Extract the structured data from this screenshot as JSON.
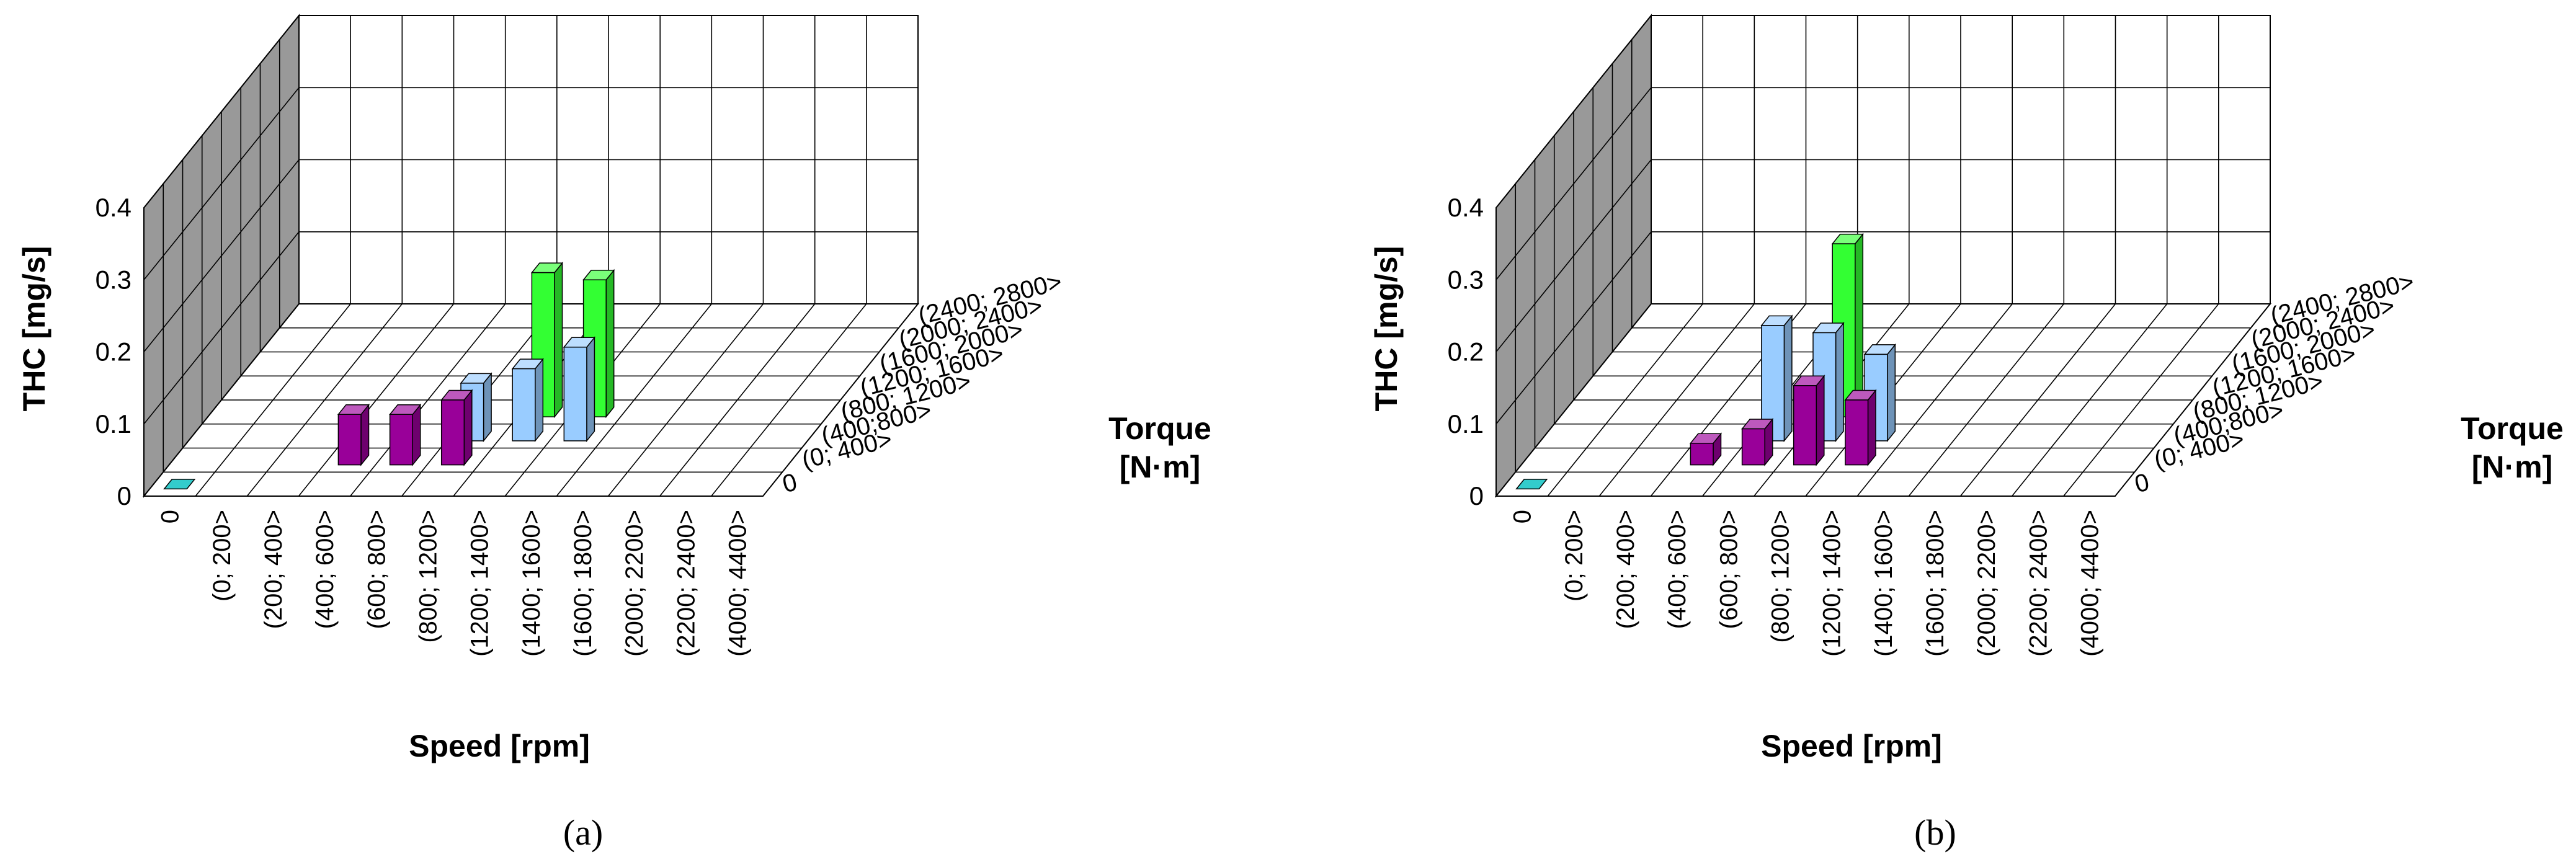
{
  "chart_data": [
    {
      "panel": "(a)",
      "type": "bar3d",
      "ylabel": "THC [mg/s]",
      "xlabel": "Speed [rpm]",
      "zlabel_lines": [
        "Torque",
        "[N·m]"
      ],
      "yticks": [
        "0",
        "0.1",
        "0.2",
        "0.3",
        "0.4"
      ],
      "ylim": [
        0,
        0.4
      ],
      "speed_categories": [
        "0",
        "(0; 200>",
        "(200; 400>",
        "(400; 600>",
        "(600; 800>",
        "(800; 1200>",
        "(1200; 1400>",
        "(1400; 1600>",
        "(1600; 1800>",
        "(2000; 2200>",
        "(2200; 2400>",
        "(4000; 4400>"
      ],
      "torque_categories": [
        "0",
        "(0; 400>",
        "(400;800>",
        "(800; 1200>",
        "(1200; 1600>",
        "(1600; 2000>",
        "(2000; 2400>",
        "(2400; 2800>"
      ],
      "bars": [
        {
          "speed": "0",
          "torque": "0",
          "value": 0.0,
          "color": "#33cccc"
        },
        {
          "speed": "(400; 600>",
          "torque": "(0; 400>",
          "value": 0.07,
          "color": "#990099"
        },
        {
          "speed": "(600; 800>",
          "torque": "(0; 400>",
          "value": 0.07,
          "color": "#990099"
        },
        {
          "speed": "(800; 1200>",
          "torque": "(0; 400>",
          "value": 0.09,
          "color": "#990099"
        },
        {
          "speed": "(800; 1200>",
          "torque": "(400;800>",
          "value": 0.08,
          "color": "#99ccff"
        },
        {
          "speed": "(1200; 1400>",
          "torque": "(400;800>",
          "value": 0.1,
          "color": "#99ccff"
        },
        {
          "speed": "(1400; 1600>",
          "torque": "(400;800>",
          "value": 0.13,
          "color": "#99ccff"
        },
        {
          "speed": "(1200; 1400>",
          "torque": "(800; 1200>",
          "value": 0.2,
          "color": "#33ff33"
        },
        {
          "speed": "(1400; 1600>",
          "torque": "(800; 1200>",
          "value": 0.19,
          "color": "#33ff33"
        }
      ]
    },
    {
      "panel": "(b)",
      "type": "bar3d",
      "ylabel": "THC [mg/s]",
      "xlabel": "Speed [rpm]",
      "zlabel_lines": [
        "Torque",
        "[N·m]"
      ],
      "yticks": [
        "0",
        "0.1",
        "0.2",
        "0.3",
        "0.4"
      ],
      "ylim": [
        0,
        0.4
      ],
      "speed_categories": [
        "0",
        "(0; 200>",
        "(200; 400>",
        "(400; 600>",
        "(600; 800>",
        "(800; 1200>",
        "(1200; 1400>",
        "(1400; 1600>",
        "(1600; 1800>",
        "(2000; 2200>",
        "(2200; 2400>",
        "(4000; 4400>"
      ],
      "torque_categories": [
        "0",
        "(0; 400>",
        "(400;800>",
        "(800; 1200>",
        "(1200; 1600>",
        "(1600; 2000>",
        "(2000; 2400>",
        "(2400; 2800>"
      ],
      "bars": [
        {
          "speed": "0",
          "torque": "0",
          "value": 0.0,
          "color": "#33cccc"
        },
        {
          "speed": "(400; 600>",
          "torque": "(0; 400>",
          "value": 0.03,
          "color": "#990099"
        },
        {
          "speed": "(600; 800>",
          "torque": "(0; 400>",
          "value": 0.05,
          "color": "#990099"
        },
        {
          "speed": "(800; 1200>",
          "torque": "(0; 400>",
          "value": 0.11,
          "color": "#990099"
        },
        {
          "speed": "(1200; 1400>",
          "torque": "(0; 400>",
          "value": 0.09,
          "color": "#990099"
        },
        {
          "speed": "(600; 800>",
          "torque": "(400;800>",
          "value": 0.16,
          "color": "#99ccff"
        },
        {
          "speed": "(800; 1200>",
          "torque": "(400;800>",
          "value": 0.15,
          "color": "#99ccff"
        },
        {
          "speed": "(1200; 1400>",
          "torque": "(400;800>",
          "value": 0.12,
          "color": "#99ccff"
        },
        {
          "speed": "(800; 1200>",
          "torque": "(800; 1200>",
          "value": 0.24,
          "color": "#33ff33"
        }
      ]
    }
  ],
  "colors": {
    "wall": "#999999",
    "grid": "#000000",
    "background": "#ffffff"
  }
}
